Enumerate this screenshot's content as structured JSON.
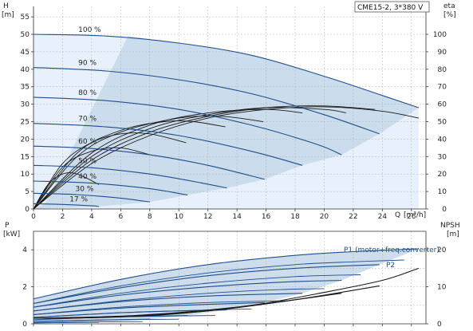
{
  "chart_data": [
    {
      "type": "line",
      "model_label": "CME15-2, 3*380 V",
      "ylabel_left": "H",
      "ylabel_left_unit": "[m]",
      "ylabel_right": "eta",
      "ylabel_right_unit": "[%]",
      "xlabel": "Q",
      "xlabel_unit": "[m³/h]",
      "xlim": [
        0,
        27
      ],
      "ylim": [
        0,
        58
      ],
      "y2lim": [
        0,
        116
      ],
      "x_ticks": [
        0,
        2,
        4,
        6,
        8,
        10,
        12,
        14,
        16,
        18,
        20,
        22,
        24,
        26
      ],
      "x_tick_labels": [
        "0",
        "2",
        "4",
        "6",
        "8",
        "10",
        "12",
        "14",
        "16",
        "18",
        "20",
        "22",
        "24",
        "26"
      ],
      "y_ticks": [
        0,
        5,
        10,
        15,
        20,
        25,
        30,
        35,
        40,
        45,
        50,
        55
      ],
      "y_tick_labels": [
        "0",
        "5",
        "10",
        "15",
        "20",
        "25",
        "30",
        "35",
        "40",
        "45",
        "50",
        "55"
      ],
      "y2_ticks": [
        0,
        10,
        20,
        30,
        40,
        50,
        60,
        70,
        80,
        90,
        100
      ],
      "y2_tick_labels": [
        "0",
        "10",
        "20",
        "30",
        "40",
        "50",
        "60",
        "70",
        "80",
        "90",
        "100"
      ],
      "grid": true,
      "operating_area_color": "#c8d9ea",
      "max_curve_area_color": "#e8f1fb",
      "curve_color": "#1f4e8c",
      "efficiency_color": "#1a1a1a",
      "speed_labels": [
        "100 %",
        "90 %",
        "80 %",
        "70 %",
        "60 %",
        "50 %",
        "40 %",
        "30 %",
        "17 %"
      ],
      "speed_curves": [
        {
          "speed": 100,
          "label_q": 1.6,
          "points": [
            [
              0,
              50
            ],
            [
              5,
              49.5
            ],
            [
              10,
              47.5
            ],
            [
              15,
              44
            ],
            [
              20,
              38
            ],
            [
              24,
              32.5
            ],
            [
              26.5,
              29
            ]
          ]
        },
        {
          "speed": 90,
          "label_q": 1.6,
          "points": [
            [
              0,
              40.5
            ],
            [
              5,
              39.5
            ],
            [
              10,
              37
            ],
            [
              15,
              33
            ],
            [
              20,
              27
            ],
            [
              23.8,
              21.5
            ]
          ]
        },
        {
          "speed": 80,
          "label_q": 1.6,
          "points": [
            [
              0,
              32
            ],
            [
              5,
              31
            ],
            [
              10,
              28.5
            ],
            [
              15,
              24
            ],
            [
              19.5,
              18.5
            ],
            [
              21.2,
              15.5
            ]
          ]
        },
        {
          "speed": 70,
          "label_q": 1.6,
          "points": [
            [
              0,
              24.5
            ],
            [
              5,
              23.5
            ],
            [
              10,
              21
            ],
            [
              15,
              16.5
            ],
            [
              18.5,
              12.5
            ]
          ]
        },
        {
          "speed": 60,
          "label_q": 1.6,
          "points": [
            [
              0,
              18
            ],
            [
              4,
              17.3
            ],
            [
              8,
              15.5
            ],
            [
              12,
              12.5
            ],
            [
              15.9,
              8.5
            ]
          ]
        },
        {
          "speed": 50,
          "label_q": 1.6,
          "points": [
            [
              0,
              12.5
            ],
            [
              4,
              11.8
            ],
            [
              8,
              10
            ],
            [
              11.5,
              7.5
            ],
            [
              13.3,
              6
            ]
          ]
        },
        {
          "speed": 40,
          "label_q": 1.6,
          "points": [
            [
              0,
              8
            ],
            [
              4,
              7.4
            ],
            [
              8,
              5.8
            ],
            [
              10.6,
              4
            ]
          ]
        },
        {
          "speed": 30,
          "label_q": 1.4,
          "points": [
            [
              0,
              4.5
            ],
            [
              3,
              4.1
            ],
            [
              6,
              3.1
            ],
            [
              8,
              2
            ]
          ]
        },
        {
          "speed": 17,
          "label_q": 1.0,
          "points": [
            [
              0,
              1.5
            ],
            [
              2,
              1.3
            ],
            [
              4,
              0.9
            ],
            [
              4.5,
              0.7
            ]
          ]
        }
      ],
      "efficiency_curves": [
        {
          "points": [
            [
              0,
              0
            ],
            [
              4,
              26
            ],
            [
              8,
              42
            ],
            [
              12,
              52
            ],
            [
              16,
              57
            ],
            [
              20,
              58.5
            ],
            [
              24,
              56
            ],
            [
              26.5,
              52
            ]
          ]
        },
        {
          "points": [
            [
              0,
              0
            ],
            [
              4,
              28
            ],
            [
              8,
              44
            ],
            [
              12,
              53
            ],
            [
              16,
              58
            ],
            [
              20,
              59
            ],
            [
              23.5,
              57
            ]
          ]
        },
        {
          "points": [
            [
              0,
              0
            ],
            [
              4,
              30
            ],
            [
              8,
              46
            ],
            [
              12,
              54
            ],
            [
              16,
              58
            ],
            [
              20,
              57
            ],
            [
              21.5,
              55
            ]
          ]
        },
        {
          "points": [
            [
              0,
              0
            ],
            [
              4,
              32
            ],
            [
              8,
              48
            ],
            [
              12,
              55
            ],
            [
              16,
              57
            ],
            [
              18.5,
              55
            ]
          ]
        },
        {
          "points": [
            [
              0,
              0
            ],
            [
              3,
              30
            ],
            [
              6,
              44
            ],
            [
              10,
              52
            ],
            [
              13,
              53
            ],
            [
              15.8,
              50
            ]
          ]
        },
        {
          "points": [
            [
              0,
              0
            ],
            [
              3,
              32
            ],
            [
              6,
              45
            ],
            [
              9,
              50
            ],
            [
              11,
              50
            ],
            [
              13.2,
              47
            ]
          ]
        },
        {
          "points": [
            [
              0,
              0
            ],
            [
              2,
              26
            ],
            [
              4,
              38
            ],
            [
              6,
              43
            ],
            [
              8,
              43
            ],
            [
              10.5,
              38
            ]
          ]
        },
        {
          "points": [
            [
              0,
              0
            ],
            [
              2,
              24
            ],
            [
              4,
              33
            ],
            [
              6,
              35
            ],
            [
              8,
              31
            ]
          ]
        },
        {
          "points": [
            [
              0,
              0
            ],
            [
              1,
              14
            ],
            [
              2,
              20
            ],
            [
              3,
              20
            ],
            [
              4.5,
              14
            ]
          ]
        }
      ]
    },
    {
      "type": "line",
      "ylabel_left": "P",
      "ylabel_left_unit": "[kW]",
      "ylabel_right": "NPSH",
      "ylabel_right_unit": "[m]",
      "xlim": [
        0,
        27
      ],
      "ylim": [
        0,
        5
      ],
      "y2lim": [
        0,
        25
      ],
      "y_ticks": [
        0,
        2,
        4
      ],
      "y_tick_labels": [
        "0",
        "2",
        "4"
      ],
      "y2_ticks": [
        0,
        10,
        20
      ],
      "y2_tick_labels": [
        "0",
        "10",
        "20"
      ],
      "grid": true,
      "series_labels": [
        "P1 (motor+freq.converter)",
        "P2"
      ],
      "p1_curves": [
        {
          "points": [
            [
              0,
              1.35
            ],
            [
              6,
              2.4
            ],
            [
              12,
              3.2
            ],
            [
              18,
              3.7
            ],
            [
              22,
              3.9
            ],
            [
              26.5,
              4.05
            ]
          ]
        },
        {
          "points": [
            [
              0,
              1.1
            ],
            [
              6,
              1.95
            ],
            [
              12,
              2.6
            ],
            [
              18,
              3.0
            ],
            [
              23.8,
              3.2
            ]
          ]
        },
        {
          "points": [
            [
              0,
              0.9
            ],
            [
              6,
              1.55
            ],
            [
              12,
              2.0
            ],
            [
              17,
              2.25
            ],
            [
              21.2,
              2.35
            ]
          ]
        },
        {
          "points": [
            [
              0,
              0.7
            ],
            [
              6,
              1.2
            ],
            [
              12,
              1.5
            ],
            [
              18.5,
              1.65
            ]
          ]
        },
        {
          "points": [
            [
              0,
              0.5
            ],
            [
              6,
              0.85
            ],
            [
              12,
              1.05
            ],
            [
              15.9,
              1.15
            ]
          ]
        },
        {
          "points": [
            [
              0,
              0.35
            ],
            [
              6,
              0.6
            ],
            [
              10,
              0.7
            ],
            [
              13.3,
              0.75
            ]
          ]
        },
        {
          "points": [
            [
              0,
              0.22
            ],
            [
              5,
              0.36
            ],
            [
              10.6,
              0.45
            ]
          ]
        },
        {
          "points": [
            [
              0,
              0.13
            ],
            [
              4,
              0.2
            ],
            [
              8,
              0.25
            ]
          ]
        },
        {
          "points": [
            [
              0,
              0.05
            ],
            [
              2,
              0.07
            ],
            [
              4.5,
              0.09
            ]
          ]
        }
      ],
      "p2_curves": [
        {
          "points": [
            [
              0,
              1.1
            ],
            [
              6,
              2.05
            ],
            [
              12,
              2.75
            ],
            [
              18,
              3.2
            ],
            [
              22,
              3.35
            ],
            [
              25.5,
              3.45
            ]
          ]
        },
        {
          "points": [
            [
              0,
              0.9
            ],
            [
              6,
              1.65
            ],
            [
              12,
              2.2
            ],
            [
              18,
              2.55
            ],
            [
              22.5,
              2.65
            ]
          ]
        },
        {
          "points": [
            [
              0,
              0.7
            ],
            [
              6,
              1.25
            ],
            [
              12,
              1.65
            ],
            [
              17,
              1.85
            ],
            [
              20,
              1.9
            ]
          ]
        },
        {
          "points": [
            [
              0,
              0.5
            ],
            [
              6,
              0.9
            ],
            [
              12,
              1.15
            ],
            [
              17.5,
              1.25
            ]
          ]
        },
        {
          "points": [
            [
              0,
              0.35
            ],
            [
              6,
              0.6
            ],
            [
              12,
              0.75
            ],
            [
              15,
              0.8
            ]
          ]
        },
        {
          "points": [
            [
              0,
              0.22
            ],
            [
              6,
              0.38
            ],
            [
              12.5,
              0.45
            ]
          ]
        },
        {
          "points": [
            [
              0,
              0.13
            ],
            [
              5,
              0.21
            ],
            [
              10,
              0.25
            ]
          ]
        },
        {
          "points": [
            [
              0,
              0.07
            ],
            [
              4,
              0.1
            ],
            [
              7.5,
              0.12
            ]
          ]
        }
      ],
      "npsh_curves": [
        {
          "points": [
            [
              0,
              0.3
            ],
            [
              5,
              0.35
            ],
            [
              10,
              0.55
            ],
            [
              15,
              1.0
            ],
            [
              20,
              1.7
            ],
            [
              24,
              2.35
            ],
            [
              26.5,
              3
            ]
          ]
        },
        {
          "points": [
            [
              0,
              0.3
            ],
            [
              6,
              0.4
            ],
            [
              12,
              0.7
            ],
            [
              18,
              1.3
            ],
            [
              23.8,
              2.05
            ]
          ]
        },
        {
          "points": [
            [
              0,
              0.3
            ],
            [
              7,
              0.45
            ],
            [
              14,
              0.9
            ],
            [
              21.2,
              1.65
            ]
          ]
        }
      ]
    }
  ]
}
